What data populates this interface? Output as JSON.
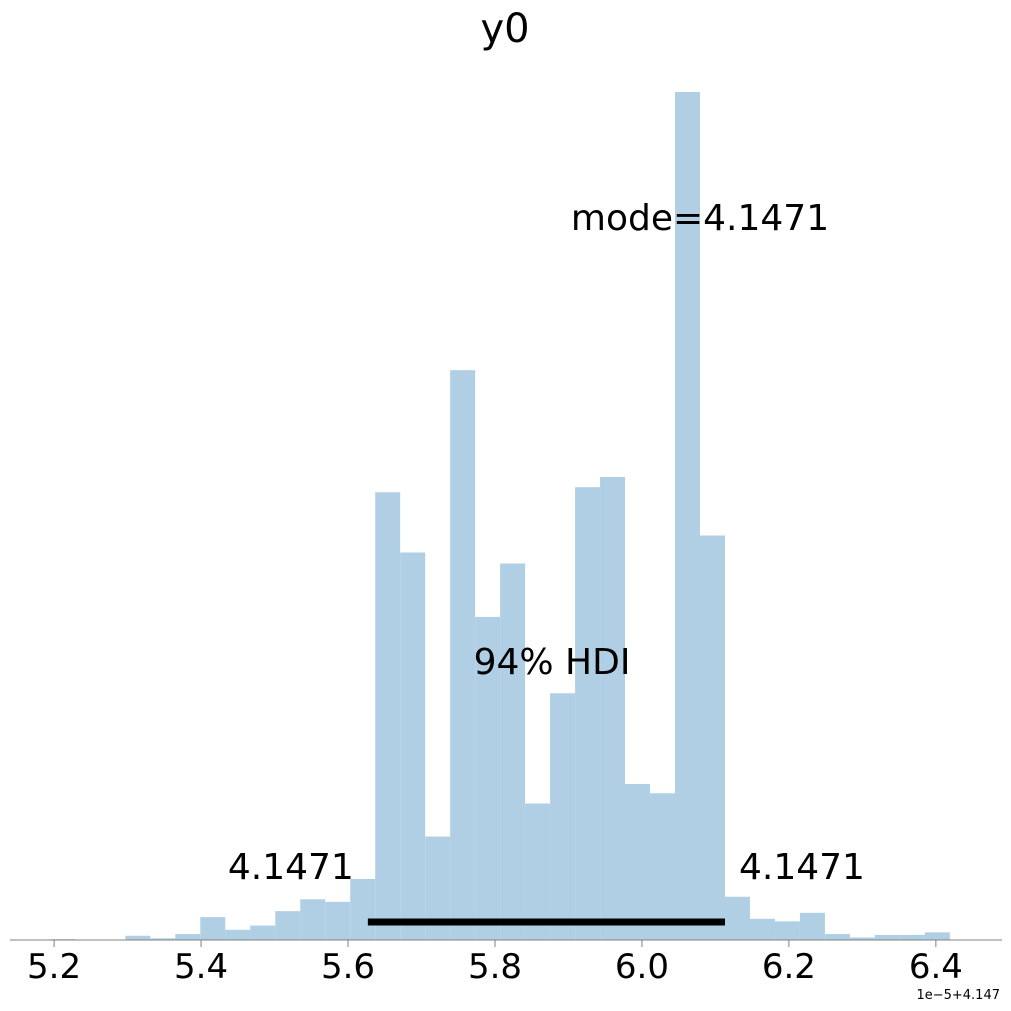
{
  "chart_data": {
    "type": "bar",
    "title": "y0",
    "xlabel": "",
    "ylabel": "",
    "x_offset_label": "1e−5+4.147",
    "xlim": [
      5.14,
      6.49
    ],
    "ylim": [
      0,
      1
    ],
    "x_ticks": [
      "5.2",
      "5.4",
      "5.6",
      "5.8",
      "6.0",
      "6.2",
      "6.4"
    ],
    "x_tick_values": [
      5.2,
      5.4,
      5.6,
      5.8,
      6.0,
      6.2,
      6.4
    ],
    "grid": false,
    "bin_edges": [
      5.195,
      5.229,
      5.263,
      5.297,
      5.331,
      5.365,
      5.399,
      5.433,
      5.467,
      5.501,
      5.535,
      5.569,
      5.603,
      5.637,
      5.671,
      5.705,
      5.739,
      5.773,
      5.807,
      5.841,
      5.875,
      5.909,
      5.943,
      5.977,
      6.011,
      6.045,
      6.079,
      6.113,
      6.147,
      6.181,
      6.215,
      6.249,
      6.283,
      6.317,
      6.351,
      6.385,
      6.419
    ],
    "bin_values": [
      0.001,
      0.0,
      0.0,
      0.005,
      0.002,
      0.007,
      0.027,
      0.012,
      0.017,
      0.034,
      0.048,
      0.045,
      0.072,
      0.528,
      0.457,
      0.122,
      0.672,
      0.381,
      0.444,
      0.161,
      0.291,
      0.534,
      0.546,
      0.184,
      0.173,
      1.0,
      0.477,
      0.051,
      0.025,
      0.022,
      0.032,
      0.007,
      0.003,
      0.006,
      0.006,
      0.009
    ],
    "bar_color": "#b0cfe4",
    "hdi": {
      "label": "94% HDI",
      "low": 5.627,
      "high": 6.113,
      "low_label": "4.1471",
      "high_label": "4.1471",
      "color": "#000000"
    },
    "mode_label": "mode=4.1471",
    "axis_color": "#808080"
  }
}
